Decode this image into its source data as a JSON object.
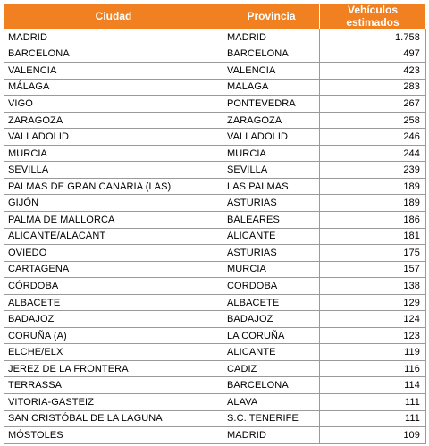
{
  "headers": [
    "Ciudad",
    "Provincia",
    "Vehículos estimados"
  ],
  "rows": [
    [
      "MADRID",
      "MADRID",
      "1.758"
    ],
    [
      "BARCELONA",
      "BARCELONA",
      "497"
    ],
    [
      "VALENCIA",
      "VALENCIA",
      "423"
    ],
    [
      "MÁLAGA",
      "MALAGA",
      "283"
    ],
    [
      "VIGO",
      "PONTEVEDRA",
      "267"
    ],
    [
      "ZARAGOZA",
      "ZARAGOZA",
      "258"
    ],
    [
      "VALLADOLID",
      "VALLADOLID",
      "246"
    ],
    [
      "MURCIA",
      "MURCIA",
      "244"
    ],
    [
      "SEVILLA",
      "SEVILLA",
      "239"
    ],
    [
      "PALMAS DE GRAN CANARIA (LAS)",
      "LAS PALMAS",
      "189"
    ],
    [
      "GIJÓN",
      "ASTURIAS",
      "189"
    ],
    [
      "PALMA DE MALLORCA",
      "BALEARES",
      "186"
    ],
    [
      "ALICANTE/ALACANT",
      "ALICANTE",
      "181"
    ],
    [
      "OVIEDO",
      "ASTURIAS",
      "175"
    ],
    [
      "CARTAGENA",
      "MURCIA",
      "157"
    ],
    [
      "CÓRDOBA",
      "CORDOBA",
      "138"
    ],
    [
      "ALBACETE",
      "ALBACETE",
      "129"
    ],
    [
      "BADAJOZ",
      "BADAJOZ",
      "124"
    ],
    [
      "CORUÑA (A)",
      "LA CORUÑA",
      "123"
    ],
    [
      "ELCHE/ELX",
      "ALICANTE",
      "119"
    ],
    [
      "JEREZ DE LA FRONTERA",
      "CADIZ",
      "116"
    ],
    [
      "TERRASSA",
      "BARCELONA",
      "114"
    ],
    [
      "VITORIA-GASTEIZ",
      "ALAVA",
      "111"
    ],
    [
      "SAN CRISTÓBAL DE LA LAGUNA",
      "S.C. TENERIFE",
      "111"
    ],
    [
      "MÓSTOLES",
      "MADRID",
      "109"
    ]
  ],
  "colors": {
    "header_bg": "#f08020",
    "header_text": "#ffffff",
    "border": "#9a9a9a"
  }
}
